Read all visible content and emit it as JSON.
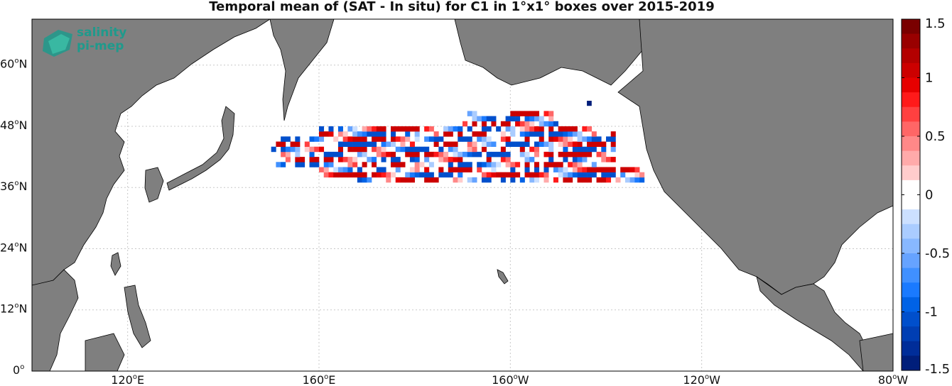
{
  "title": "Temporal mean of (SAT - In situ) for C1 in 1°x1° boxes over 2015-2019",
  "logo": {
    "line1": "salinity",
    "line2": "pi-mep"
  },
  "colors": {
    "land": "#7f7f7f",
    "coast": "#000000",
    "ocean": "#ffffff",
    "grid": "#c8c8c8"
  },
  "map": {
    "projection": "equirectangular",
    "lon_range": [
      100,
      280
    ],
    "lat_range": [
      0,
      69
    ],
    "lat_ticks": [
      {
        "value": 0,
        "label": "0",
        "hemi": ""
      },
      {
        "value": 12,
        "label": "12",
        "hemi": "N"
      },
      {
        "value": 24,
        "label": "24",
        "hemi": "N"
      },
      {
        "value": 36,
        "label": "36",
        "hemi": "N"
      },
      {
        "value": 48,
        "label": "48",
        "hemi": "N"
      },
      {
        "value": 60,
        "label": "60",
        "hemi": "N"
      }
    ],
    "lon_ticks": [
      {
        "value": 120,
        "label": "120",
        "hemi": "E"
      },
      {
        "value": 160,
        "label": "160",
        "hemi": "E"
      },
      {
        "value": 200,
        "label": "160",
        "hemi": "W"
      },
      {
        "value": 240,
        "label": "120",
        "hemi": "W"
      },
      {
        "value": 280,
        "label": "80",
        "hemi": "W"
      }
    ]
  },
  "colorbar": {
    "range": [
      -1.5,
      1.5
    ],
    "ticks": [
      {
        "value": 1.5,
        "label": "1.5"
      },
      {
        "value": 1,
        "label": "1"
      },
      {
        "value": 0.5,
        "label": "0.5"
      },
      {
        "value": 0,
        "label": "0"
      },
      {
        "value": -0.5,
        "label": "-0.5"
      },
      {
        "value": -1,
        "label": "-1"
      },
      {
        "value": -1.5,
        "label": "-1.5"
      }
    ],
    "steps": [
      "#7a0000",
      "#990000",
      "#b30000",
      "#cc0000",
      "#e60000",
      "#ff1a1a",
      "#ff4040",
      "#ff6666",
      "#ff8888",
      "#ffaaaa",
      "#ffcccc",
      "#ffffff",
      "#ffffff",
      "#cce0ff",
      "#aaccff",
      "#88b8ff",
      "#66a3ff",
      "#4090ff",
      "#1a7aff",
      "#0062e6",
      "#004fcc",
      "#003eb3",
      "#002d99",
      "#001e7a"
    ]
  }
}
